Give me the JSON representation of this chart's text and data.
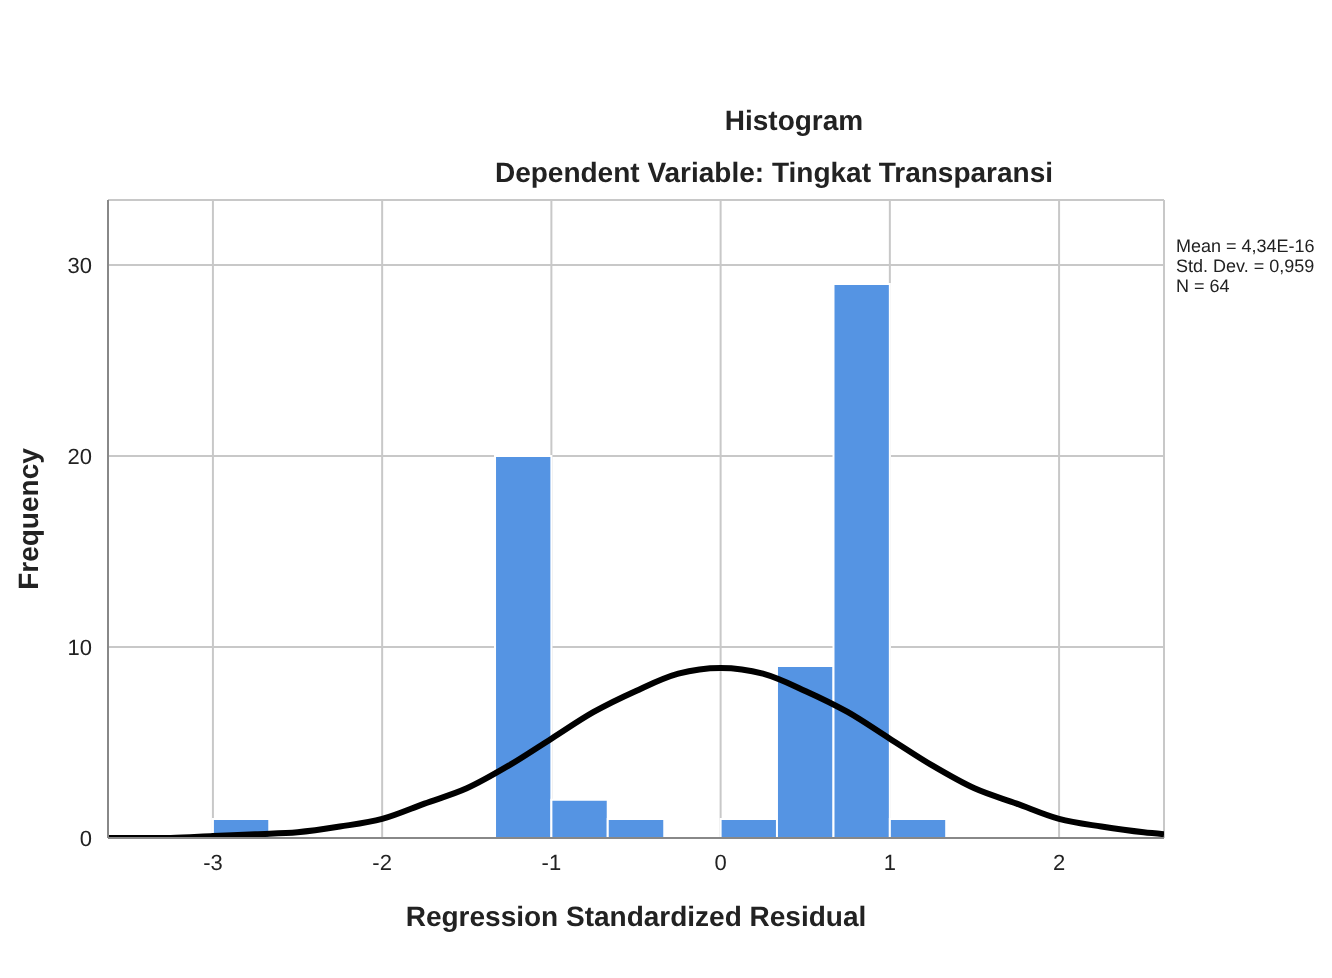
{
  "chart_data": {
    "type": "histogram",
    "title": "Histogram",
    "subtitle": "Dependent Variable: Tingkat Transparansi",
    "xlabel": "Regression Standardized Residual",
    "ylabel": "Frequency",
    "bins": [
      -3,
      -2.667,
      -2.333,
      -2,
      -1.667,
      -1.333,
      -1,
      -0.667,
      -0.333,
      0,
      0.333,
      0.667,
      1,
      1.333
    ],
    "values": [
      1,
      0,
      0,
      0,
      0,
      20,
      2,
      1,
      0,
      1,
      9,
      29,
      1
    ],
    "color": "#5594e3",
    "series": [
      {
        "type": "line",
        "color": "#000000",
        "x": [
          -3.62,
          -3.25,
          -3,
          -2.75,
          -2.5,
          -2.25,
          -2,
          -1.75,
          -1.5,
          -1.25,
          -1,
          -0.75,
          -0.5,
          -0.25,
          0,
          0.25,
          0.5,
          0.75,
          1,
          1.25,
          1.5,
          1.75,
          2,
          2.25,
          2.5,
          2.62
        ],
        "values": [
          0.0,
          0.0,
          0.1,
          0.2,
          0.3,
          0.6,
          1.0,
          1.8,
          2.6,
          3.8,
          5.2,
          6.6,
          7.7,
          8.6,
          8.9,
          8.6,
          7.7,
          6.6,
          5.2,
          3.8,
          2.6,
          1.8,
          1.0,
          0.6,
          0.3,
          0.2
        ]
      }
    ],
    "xlim": [
      -3.62,
      2.62
    ],
    "xticks": [
      -3,
      -2,
      -1,
      0,
      1,
      2
    ],
    "ylim": [
      0,
      33.4
    ],
    "yticks": [
      0,
      10,
      20,
      30
    ],
    "grid": true,
    "marker": "none",
    "line_style": "solid",
    "annotations": [
      "Mean = 4,34E-16",
      "Std. Dev. = 0,959",
      "N = 64"
    ]
  }
}
